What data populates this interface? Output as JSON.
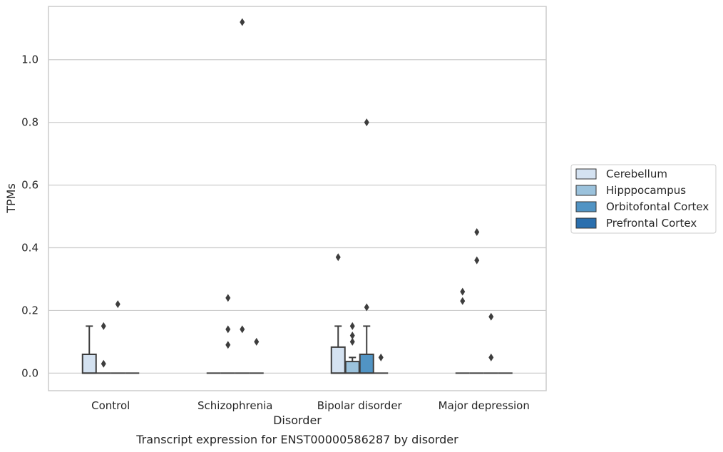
{
  "caption": "Transcript expression for ENST00000586287 by disorder",
  "chart_data": {
    "type": "box",
    "xlabel": "Disorder",
    "ylabel": "TPMs",
    "categories": [
      "Control",
      "Schizophrenia",
      "Bipolar disorder",
      "Major depression"
    ],
    "ylim": [
      -0.056,
      1.17
    ],
    "yticks": [
      "0.0",
      "0.2",
      "0.4",
      "0.6",
      "0.8",
      "1.0"
    ],
    "grid": "horizontal",
    "legend": {
      "placement": "right",
      "entries": [
        "Cerebellum",
        "Hipppocampus",
        "Orbitofontal Cortex",
        "Prefrontal Cortex"
      ]
    },
    "series": [
      {
        "name": "Cerebellum",
        "color": "#d4e2f1",
        "boxes": [
          {
            "q1": 0.0,
            "median": 0.0,
            "q3": 0.06,
            "whisker_low": 0.0,
            "whisker_high": 0.15,
            "outliers": []
          },
          {
            "q1": 0.0,
            "median": 0.0,
            "q3": 0.0,
            "whisker_low": 0.0,
            "whisker_high": 0.0,
            "outliers": []
          },
          {
            "q1": 0.0,
            "median": 0.0,
            "q3": 0.083,
            "whisker_low": 0.0,
            "whisker_high": 0.15,
            "outliers": [
              0.37
            ]
          },
          {
            "q1": 0.0,
            "median": 0.0,
            "q3": 0.0,
            "whisker_low": 0.0,
            "whisker_high": 0.0,
            "outliers": [
              0.26,
              0.23
            ]
          }
        ]
      },
      {
        "name": "Hipppocampus",
        "color": "#9bc2dc",
        "boxes": [
          {
            "q1": 0.0,
            "median": 0.0,
            "q3": 0.0,
            "whisker_low": 0.0,
            "whisker_high": 0.0,
            "outliers": [
              0.15,
              0.03
            ]
          },
          {
            "q1": 0.0,
            "median": 0.0,
            "q3": 0.0,
            "whisker_low": 0.0,
            "whisker_high": 0.0,
            "outliers": [
              0.24,
              0.14,
              0.09
            ]
          },
          {
            "q1": 0.0,
            "median": 0.0,
            "q3": 0.037,
            "whisker_low": 0.0,
            "whisker_high": 0.05,
            "outliers": [
              0.15,
              0.12,
              0.1
            ]
          },
          {
            "q1": 0.0,
            "median": 0.0,
            "q3": 0.0,
            "whisker_low": 0.0,
            "whisker_high": 0.0,
            "outliers": [
              0.45,
              0.36
            ]
          }
        ]
      },
      {
        "name": "Orbitofontal Cortex",
        "color": "#5194c4",
        "boxes": [
          {
            "q1": 0.0,
            "median": 0.0,
            "q3": 0.0,
            "whisker_low": 0.0,
            "whisker_high": 0.0,
            "outliers": [
              0.22
            ]
          },
          {
            "q1": 0.0,
            "median": 0.0,
            "q3": 0.0,
            "whisker_low": 0.0,
            "whisker_high": 0.0,
            "outliers": [
              1.12,
              0.14
            ]
          },
          {
            "q1": 0.0,
            "median": 0.0,
            "q3": 0.06,
            "whisker_low": 0.0,
            "whisker_high": 0.15,
            "outliers": [
              0.8,
              0.21
            ]
          },
          {
            "q1": 0.0,
            "median": 0.0,
            "q3": 0.0,
            "whisker_low": 0.0,
            "whisker_high": 0.0,
            "outliers": [
              0.18,
              0.05
            ]
          }
        ]
      },
      {
        "name": "Prefrontal Cortex",
        "color": "#2a6fae",
        "boxes": [
          {
            "q1": 0.0,
            "median": 0.0,
            "q3": 0.0,
            "whisker_low": 0.0,
            "whisker_high": 0.0,
            "outliers": []
          },
          {
            "q1": 0.0,
            "median": 0.0,
            "q3": 0.0,
            "whisker_low": 0.0,
            "whisker_high": 0.0,
            "outliers": [
              0.1
            ]
          },
          {
            "q1": 0.0,
            "median": 0.0,
            "q3": 0.0,
            "whisker_low": 0.0,
            "whisker_high": 0.0,
            "outliers": [
              0.05
            ]
          },
          {
            "q1": 0.0,
            "median": 0.0,
            "q3": 0.0,
            "whisker_low": 0.0,
            "whisker_high": 0.0,
            "outliers": []
          }
        ]
      }
    ]
  }
}
